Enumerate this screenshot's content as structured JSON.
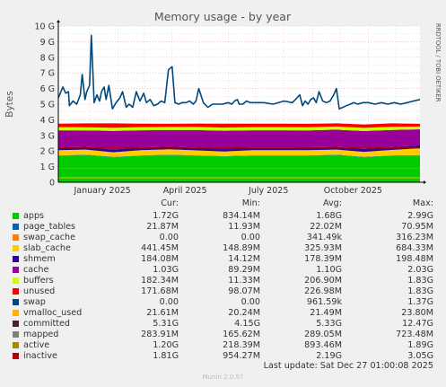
{
  "chart_data": {
    "type": "area",
    "title": "Memory usage - by year",
    "ylabel": "Bytes",
    "ylim": [
      0,
      10
    ],
    "yticks": [
      "0",
      "1 G",
      "2 G",
      "3 G",
      "4 G",
      "5 G",
      "6 G",
      "7 G",
      "8 G",
      "9 G",
      "10 G"
    ],
    "xlim": [
      "2024-11-28",
      "2025-12-27"
    ],
    "xticks": [
      {
        "label": "January 2025",
        "date": "2025-01-15"
      },
      {
        "label": "April 2025",
        "date": "2025-04-15"
      },
      {
        "label": "July 2025",
        "date": "2025-07-15"
      },
      {
        "label": "October 2025",
        "date": "2025-10-15"
      }
    ],
    "grid": true,
    "watermark": "RRDTOOL / TOBI OETIKER",
    "stack": [
      {
        "name": "apps",
        "color": "#00cc00",
        "approx": [
          1.7,
          1.75,
          1.6,
          1.7,
          1.75,
          1.7,
          1.65,
          1.7,
          1.7,
          1.7,
          1.75,
          1.6,
          1.7,
          1.72
        ]
      },
      {
        "name": "page_tables",
        "color": "#0066b3",
        "approx": [
          0.02,
          0.02,
          0.02,
          0.02,
          0.02,
          0.02,
          0.02,
          0.02,
          0.02,
          0.02,
          0.02,
          0.02,
          0.02,
          0.02
        ]
      },
      {
        "name": "swap_cache",
        "color": "#ff8000",
        "approx": [
          0,
          0,
          0,
          0,
          0,
          0,
          0,
          0,
          0,
          0,
          0,
          0,
          0,
          0
        ]
      },
      {
        "name": "slab_cache",
        "color": "#ffcc00",
        "approx": [
          0.33,
          0.32,
          0.3,
          0.33,
          0.34,
          0.32,
          0.3,
          0.33,
          0.33,
          0.34,
          0.32,
          0.33,
          0.35,
          0.44
        ]
      },
      {
        "name": "shmem",
        "color": "#330099",
        "approx": [
          0.18,
          0.18,
          0.17,
          0.18,
          0.18,
          0.18,
          0.18,
          0.18,
          0.18,
          0.18,
          0.18,
          0.18,
          0.18,
          0.18
        ]
      },
      {
        "name": "cache",
        "color": "#990099",
        "approx": [
          1.1,
          1.05,
          1.2,
          1.1,
          1.05,
          1.12,
          1.15,
          1.1,
          1.1,
          1.08,
          1.1,
          1.15,
          1.1,
          1.03
        ]
      },
      {
        "name": "buffers",
        "color": "#ccff00",
        "approx": [
          0.2,
          0.2,
          0.2,
          0.2,
          0.2,
          0.2,
          0.2,
          0.2,
          0.2,
          0.2,
          0.2,
          0.2,
          0.2,
          0.18
        ]
      },
      {
        "name": "unused",
        "color": "#ff0000",
        "approx": [
          0.22,
          0.25,
          0.28,
          0.22,
          0.2,
          0.22,
          0.25,
          0.22,
          0.22,
          0.22,
          0.2,
          0.22,
          0.22,
          0.17
        ]
      }
    ],
    "lines": [
      {
        "name": "committed",
        "color": "#00487d",
        "x": [
          "2024-11-28",
          "2024-12-03",
          "2024-12-06",
          "2024-12-09",
          "2024-12-10",
          "2024-12-14",
          "2024-12-18",
          "2024-12-22",
          "2024-12-24",
          "2024-12-27",
          "2024-12-29",
          "2025-01-01",
          "2025-01-03",
          "2025-01-06",
          "2025-01-09",
          "2025-01-12",
          "2025-01-14",
          "2025-01-17",
          "2025-01-19",
          "2025-01-22",
          "2025-01-26",
          "2025-01-30",
          "2025-02-03",
          "2025-02-06",
          "2025-02-10",
          "2025-02-13",
          "2025-02-17",
          "2025-02-21",
          "2025-02-25",
          "2025-03-01",
          "2025-03-04",
          "2025-03-08",
          "2025-03-12",
          "2025-03-16",
          "2025-03-20",
          "2025-03-24",
          "2025-03-28",
          "2025-04-01",
          "2025-04-04",
          "2025-04-08",
          "2025-04-12",
          "2025-04-16",
          "2025-04-20",
          "2025-04-24",
          "2025-04-27",
          "2025-04-30",
          "2025-05-05",
          "2025-05-10",
          "2025-05-15",
          "2025-05-20",
          "2025-05-26",
          "2025-06-01",
          "2025-06-05",
          "2025-06-08",
          "2025-06-11",
          "2025-06-13",
          "2025-06-17",
          "2025-06-21",
          "2025-06-25",
          "2025-07-01",
          "2025-07-10",
          "2025-07-20",
          "2025-08-01",
          "2025-08-10",
          "2025-08-15",
          "2025-08-18",
          "2025-08-21",
          "2025-08-24",
          "2025-08-27",
          "2025-08-30",
          "2025-09-02",
          "2025-09-05",
          "2025-09-08",
          "2025-09-12",
          "2025-09-16",
          "2025-09-20",
          "2025-09-24",
          "2025-09-27",
          "2025-09-30",
          "2025-10-04",
          "2025-10-08",
          "2025-10-12",
          "2025-10-16",
          "2025-10-20",
          "2025-10-26",
          "2025-11-01",
          "2025-11-08",
          "2025-11-15",
          "2025-11-22",
          "2025-11-29",
          "2025-12-06",
          "2025-12-13",
          "2025-12-20",
          "2025-12-27"
        ],
        "y": [
          5.4,
          6.1,
          5.7,
          5.8,
          4.9,
          5.2,
          5.0,
          5.6,
          6.9,
          5.3,
          5.8,
          6.2,
          9.4,
          5.1,
          5.6,
          5.2,
          5.8,
          6.1,
          5.3,
          6.2,
          4.7,
          5.1,
          5.4,
          5.8,
          4.8,
          5.0,
          4.8,
          5.8,
          5.2,
          5.7,
          5.1,
          5.3,
          4.9,
          5.0,
          5.2,
          5.1,
          7.2,
          7.4,
          5.1,
          5.0,
          5.1,
          5.1,
          5.2,
          5.0,
          5.2,
          6.0,
          5.1,
          4.8,
          5.0,
          5.0,
          5.0,
          5.1,
          5.0,
          5.2,
          5.3,
          5.0,
          5.0,
          5.2,
          5.1,
          5.1,
          5.1,
          5.0,
          5.2,
          5.1,
          5.4,
          5.6,
          4.9,
          5.2,
          5.0,
          5.3,
          5.4,
          5.1,
          5.8,
          5.2,
          5.1,
          5.2,
          5.6,
          6.0,
          4.7,
          4.8,
          4.9,
          5.0,
          5.1,
          5.0,
          5.1,
          5.1,
          5.0,
          5.1,
          5.0,
          5.1,
          5.0,
          5.1,
          5.2,
          5.3
        ]
      },
      {
        "name": "mapped",
        "color": "#ffb300",
        "approx_level": 0.29
      },
      {
        "name": "active",
        "color": "#cc8800",
        "approx_level": 0.9
      },
      {
        "name": "inactive",
        "color": "#b30000",
        "approx_level": 2.2
      }
    ]
  },
  "legend": {
    "headers": [
      "Cur:",
      "Min:",
      "Avg:",
      "Max:"
    ],
    "rows": [
      {
        "name": "apps",
        "color": "#00cc00",
        "cur": "1.72G",
        "min": "834.14M",
        "avg": "1.68G",
        "max": "2.99G"
      },
      {
        "name": "page_tables",
        "color": "#0066b3",
        "cur": "21.87M",
        "min": "11.93M",
        "avg": "22.02M",
        "max": "70.95M"
      },
      {
        "name": "swap_cache",
        "color": "#ff8000",
        "cur": "0.00",
        "min": "0.00",
        "avg": "341.49k",
        "max": "316.23M"
      },
      {
        "name": "slab_cache",
        "color": "#ffcc00",
        "cur": "441.45M",
        "min": "148.89M",
        "avg": "325.93M",
        "max": "684.33M"
      },
      {
        "name": "shmem",
        "color": "#330099",
        "cur": "184.08M",
        "min": "14.12M",
        "avg": "178.39M",
        "max": "198.48M"
      },
      {
        "name": "cache",
        "color": "#990099",
        "cur": "1.03G",
        "min": "89.29M",
        "avg": "1.10G",
        "max": "2.03G"
      },
      {
        "name": "buffers",
        "color": "#ccff00",
        "cur": "182.34M",
        "min": "11.33M",
        "avg": "206.90M",
        "max": "1.83G"
      },
      {
        "name": "unused",
        "color": "#ff0000",
        "cur": "171.68M",
        "min": "98.07M",
        "avg": "226.98M",
        "max": "1.83G"
      },
      {
        "name": "swap",
        "color": "#00487d",
        "cur": "0.00",
        "min": "0.00",
        "avg": "961.59k",
        "max": "1.37G"
      },
      {
        "name": "vmalloc_used",
        "color": "#ffb300",
        "cur": "21.61M",
        "min": "20.24M",
        "avg": "21.49M",
        "max": "23.80M"
      },
      {
        "name": "committed",
        "color": "#4d1f2f",
        "cur": "5.31G",
        "min": "4.15G",
        "avg": "5.33G",
        "max": "12.47G"
      },
      {
        "name": "mapped",
        "color": "#7f7f7f",
        "cur": "283.91M",
        "min": "165.62M",
        "avg": "289.05M",
        "max": "723.48M"
      },
      {
        "name": "active",
        "color": "#a38800",
        "cur": "1.20G",
        "min": "218.39M",
        "avg": "893.46M",
        "max": "1.89G"
      },
      {
        "name": "inactive",
        "color": "#b30000",
        "cur": "1.81G",
        "min": "954.27M",
        "avg": "2.19G",
        "max": "3.05G"
      }
    ]
  },
  "footer": {
    "last_update": "Last update: Sat Dec 27 01:00:08 2025",
    "munin": "Munin 2.0.57"
  }
}
